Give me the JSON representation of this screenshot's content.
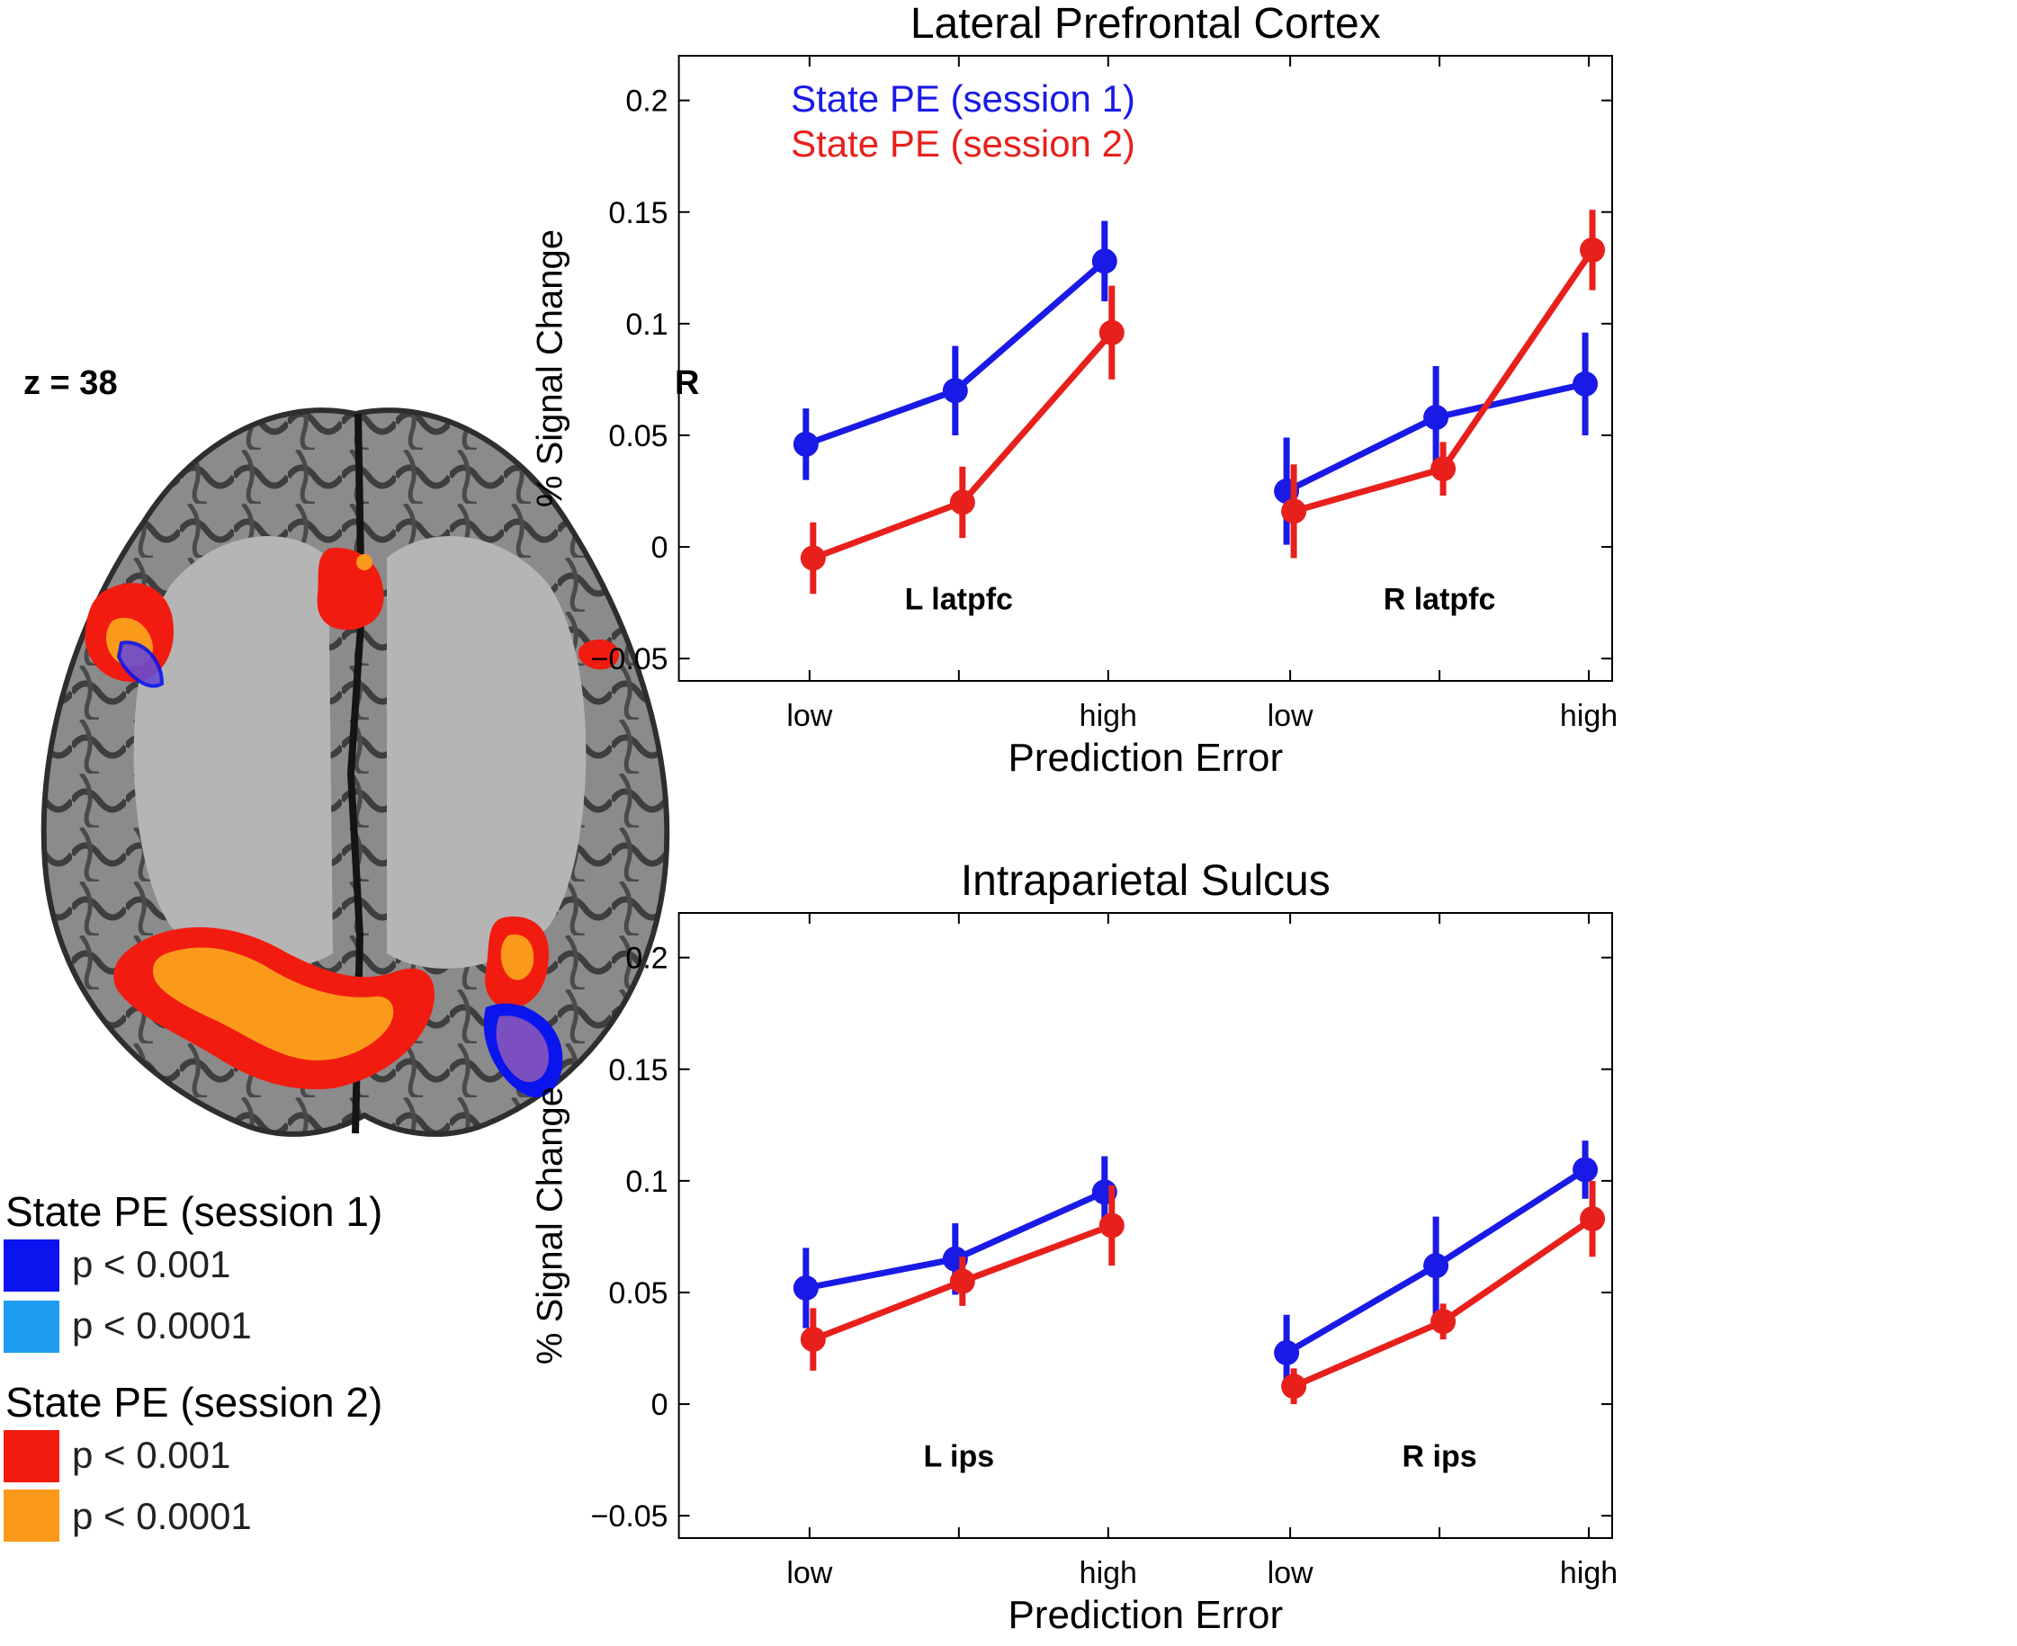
{
  "brain": {
    "slice_label": "z = 38",
    "side_label": "R",
    "legend": [
      {
        "title": "State PE (session 1)",
        "entries": [
          {
            "label": "p < 0.001",
            "color": "#0a14ee"
          },
          {
            "label": "p < 0.0001",
            "color": "#1e9cf0"
          }
        ]
      },
      {
        "title": "State PE (session 2)",
        "entries": [
          {
            "label": "p < 0.001",
            "color": "#f21b10"
          },
          {
            "label": "p < 0.0001",
            "color": "#fb9a1a"
          }
        ]
      }
    ]
  },
  "colors": {
    "session1": "#1a1ae6",
    "session2": "#e8201c"
  },
  "chart_data": [
    {
      "type": "line",
      "title": "Lateral Prefrontal Cortex",
      "xlabel": "Prediction Error",
      "ylabel": "% Signal Change",
      "ylim": [
        -0.06,
        0.22
      ],
      "yticks": [
        -0.05,
        0,
        0.05,
        0.1,
        0.15,
        0.2
      ],
      "ytick_labels": [
        "−0.05",
        "0",
        "0.05",
        "0.1",
        "0.15",
        "0.2"
      ],
      "legend": [
        {
          "label": "State PE (session 1)",
          "color": "#1a1ae6"
        },
        {
          "label": "State PE (session 2)",
          "color": "#e8201c"
        }
      ],
      "groups": [
        {
          "label": "L latpfc",
          "tick_labels": [
            "low",
            "",
            "high"
          ],
          "series": [
            {
              "name": "State PE (session 1)",
              "values": [
                0.046,
                0.07,
                0.128
              ],
              "err": [
                0.016,
                0.02,
                0.018
              ]
            },
            {
              "name": "State PE (session 2)",
              "values": [
                -0.005,
                0.02,
                0.096
              ],
              "err": [
                0.016,
                0.016,
                0.021
              ]
            }
          ]
        },
        {
          "label": "R latpfc",
          "tick_labels": [
            "low",
            "",
            "high"
          ],
          "series": [
            {
              "name": "State PE (session 1)",
              "values": [
                0.025,
                0.058,
                0.073
              ],
              "err": [
                0.024,
                0.023,
                0.023
              ]
            },
            {
              "name": "State PE (session 2)",
              "values": [
                0.016,
                0.035,
                0.133
              ],
              "err": [
                0.021,
                0.012,
                0.018
              ]
            }
          ]
        }
      ]
    },
    {
      "type": "line",
      "title": "Intraparietal Sulcus",
      "xlabel": "Prediction Error",
      "ylabel": "% Signal Change",
      "ylim": [
        -0.06,
        0.22
      ],
      "yticks": [
        -0.05,
        0,
        0.05,
        0.1,
        0.15,
        0.2
      ],
      "ytick_labels": [
        "−0.05",
        "0",
        "0.05",
        "0.1",
        "0.15",
        "0.2"
      ],
      "legend": [],
      "groups": [
        {
          "label": "L ips",
          "tick_labels": [
            "low",
            "",
            "high"
          ],
          "series": [
            {
              "name": "State PE (session 1)",
              "values": [
                0.052,
                0.065,
                0.095
              ],
              "err": [
                0.018,
                0.016,
                0.016
              ]
            },
            {
              "name": "State PE (session 2)",
              "values": [
                0.029,
                0.055,
                0.08
              ],
              "err": [
                0.014,
                0.011,
                0.018
              ]
            }
          ]
        },
        {
          "label": "R ips",
          "tick_labels": [
            "low",
            "",
            "high"
          ],
          "series": [
            {
              "name": "State PE (session 1)",
              "values": [
                0.023,
                0.062,
                0.105
              ],
              "err": [
                0.017,
                0.022,
                0.013
              ]
            },
            {
              "name": "State PE (session 2)",
              "values": [
                0.008,
                0.037,
                0.083
              ],
              "err": [
                0.008,
                0.008,
                0.017
              ]
            }
          ]
        }
      ]
    }
  ]
}
